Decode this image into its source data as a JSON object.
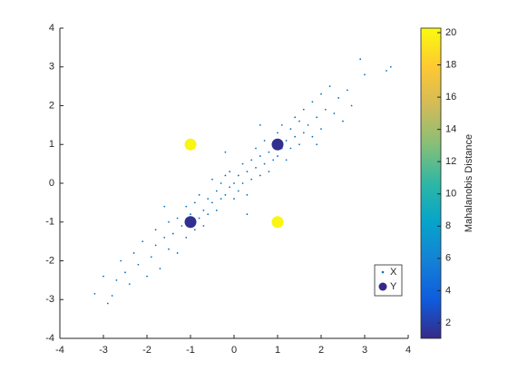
{
  "chart_data": {
    "type": "scatter",
    "xlim": [
      -4,
      4
    ],
    "xticks": [
      -4,
      -3,
      -2,
      -1,
      0,
      1,
      2,
      3,
      4
    ],
    "ylim": [
      -4,
      4
    ],
    "yticks": [
      -4,
      -3,
      -2,
      -1,
      0,
      1,
      2,
      3,
      4
    ],
    "legend": "lower right",
    "series": [
      {
        "name": "X",
        "color": "#0072bd",
        "x": [
          -3.2,
          -3.0,
          -2.9,
          -2.8,
          -2.6,
          -2.5,
          -2.4,
          -2.3,
          -2.2,
          -2.1,
          -2.0,
          -1.9,
          -1.8,
          -1.8,
          -1.7,
          -1.6,
          -1.5,
          -1.5,
          -1.4,
          -1.3,
          -1.3,
          -1.2,
          -1.1,
          -1.1,
          -1.0,
          -0.9,
          -0.9,
          -0.8,
          -0.8,
          -0.7,
          -0.7,
          -0.6,
          -0.6,
          -0.5,
          -0.5,
          -0.4,
          -0.4,
          -0.3,
          -0.3,
          -0.2,
          -0.2,
          -0.1,
          -0.1,
          0.0,
          0.0,
          0.1,
          0.1,
          0.2,
          0.2,
          0.3,
          0.3,
          0.4,
          0.4,
          0.5,
          0.5,
          0.6,
          0.6,
          0.7,
          0.7,
          0.8,
          0.8,
          0.9,
          0.9,
          1.0,
          1.0,
          1.1,
          1.1,
          1.2,
          1.2,
          1.3,
          1.3,
          1.4,
          1.4,
          1.5,
          1.5,
          1.6,
          1.6,
          1.7,
          1.8,
          1.8,
          1.9,
          2.0,
          2.0,
          2.1,
          2.2,
          2.3,
          2.4,
          2.5,
          2.6,
          2.7,
          2.9,
          3.0,
          3.5,
          3.6,
          -2.7,
          -1.6,
          0.6,
          1.9,
          -0.2,
          0.3
        ],
        "y": [
          -2.85,
          -2.4,
          -3.1,
          -2.9,
          -2.0,
          -2.3,
          -2.6,
          -1.8,
          -2.1,
          -1.5,
          -2.4,
          -1.9,
          -1.2,
          -1.6,
          -2.2,
          -1.4,
          -1.7,
          -1.0,
          -1.3,
          -0.9,
          -1.8,
          -1.1,
          -0.6,
          -1.4,
          -0.8,
          -1.2,
          -0.5,
          -0.9,
          -0.3,
          -0.7,
          -1.1,
          -0.4,
          -0.8,
          0.1,
          -0.5,
          -0.2,
          -0.7,
          0.0,
          -0.4,
          0.2,
          -0.3,
          -0.1,
          0.3,
          0.0,
          -0.4,
          0.2,
          -0.2,
          0.5,
          0.0,
          0.3,
          -0.3,
          0.6,
          0.1,
          0.4,
          0.9,
          0.2,
          0.7,
          0.5,
          1.1,
          0.8,
          0.3,
          1.0,
          0.6,
          1.3,
          0.7,
          0.9,
          1.5,
          1.1,
          0.6,
          1.4,
          0.9,
          1.7,
          1.2,
          1.0,
          1.6,
          1.9,
          1.3,
          1.5,
          2.1,
          1.2,
          1.7,
          2.3,
          1.4,
          1.9,
          2.5,
          1.8,
          2.2,
          1.6,
          2.4,
          2.0,
          3.2,
          2.8,
          2.9,
          3.0,
          -2.5,
          -0.6,
          1.5,
          1.0,
          0.8,
          -0.8
        ]
      },
      {
        "name": "Y",
        "x": [
          1,
          -1,
          -1,
          1
        ],
        "y": [
          1,
          1,
          -1,
          -1
        ],
        "distance": [
          1.3,
          20,
          1.3,
          20
        ]
      }
    ],
    "colorbar": {
      "label": "Mahalanobis Distance",
      "lim": [
        1.04,
        20.28
      ],
      "ticks": [
        2,
        4,
        6,
        8,
        10,
        12,
        14,
        16,
        18,
        20
      ],
      "colormap": [
        "#352a87",
        "#0f5cdd",
        "#1481d6",
        "#06a4ca",
        "#2eb7a4",
        "#87bf77",
        "#d1bb59",
        "#fec832",
        "#f9fb0e"
      ]
    }
  }
}
